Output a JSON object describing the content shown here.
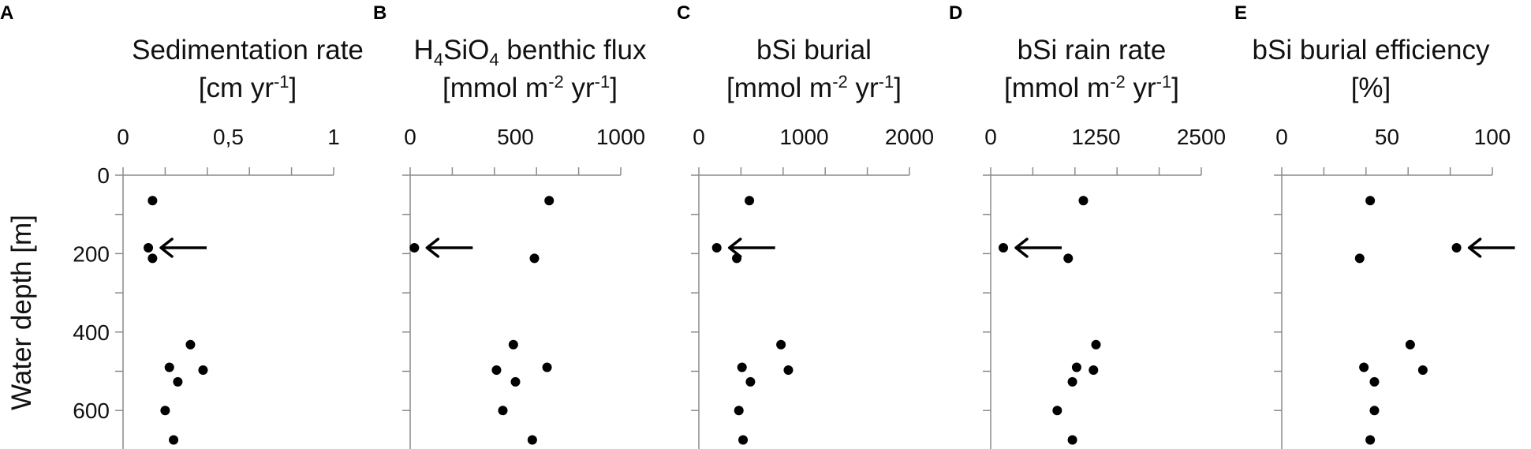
{
  "ylabel": "Water depth [m]",
  "y_ticks": [
    "0",
    "200",
    "400",
    "600"
  ],
  "chart_data": [
    {
      "type": "scatter",
      "letter": "A",
      "title_lines": [
        [
          {
            "t": "Sedimentation rate"
          }
        ],
        [
          {
            "t": "[cm yr"
          },
          {
            "t": "-1",
            "sup": true
          },
          {
            "t": "]"
          }
        ]
      ],
      "xlim": [
        0,
        1
      ],
      "xticks": [
        0,
        0.5,
        1
      ],
      "xtick_labels": [
        "0",
        "0,5",
        "1"
      ],
      "ylim": [
        0,
        700
      ],
      "y_inverted": true,
      "x": [
        0.14,
        0.12,
        0.14,
        0.32,
        0.22,
        0.38,
        0.26,
        0.2,
        0.24
      ],
      "y": [
        65,
        185,
        212,
        432,
        490,
        497,
        527,
        600,
        675
      ],
      "arrow_at": [
        0.12,
        185
      ]
    },
    {
      "type": "scatter",
      "letter": "B",
      "title_lines": [
        [
          {
            "t": "H"
          },
          {
            "t": "4",
            "sub": true
          },
          {
            "t": "SiO"
          },
          {
            "t": "4",
            "sub": true
          },
          {
            "t": " benthic flux"
          }
        ],
        [
          {
            "t": "[mmol m"
          },
          {
            "t": "-2",
            "sup": true
          },
          {
            "t": " yr"
          },
          {
            "t": "-1",
            "sup": true
          },
          {
            "t": "]"
          }
        ]
      ],
      "xlim": [
        0,
        1000
      ],
      "xticks": [
        0,
        500,
        1000
      ],
      "xtick_labels": [
        "0",
        "500",
        "1000"
      ],
      "ylim": [
        0,
        700
      ],
      "y_inverted": true,
      "x": [
        660,
        20,
        590,
        490,
        650,
        410,
        500,
        440,
        580
      ],
      "y": [
        65,
        185,
        212,
        432,
        490,
        497,
        527,
        600,
        675
      ],
      "arrow_at": [
        20,
        185
      ]
    },
    {
      "type": "scatter",
      "letter": "C",
      "title_lines": [
        [
          {
            "t": "bSi burial"
          }
        ],
        [
          {
            "t": "[mmol m"
          },
          {
            "t": "-2",
            "sup": true
          },
          {
            "t": " yr"
          },
          {
            "t": "-1",
            "sup": true
          },
          {
            "t": "]"
          }
        ]
      ],
      "xlim": [
        0,
        2000
      ],
      "xticks": [
        0,
        1000,
        2000
      ],
      "xtick_labels": [
        "0",
        "1000",
        "2000"
      ],
      "ylim": [
        0,
        700
      ],
      "y_inverted": true,
      "x": [
        480,
        170,
        360,
        780,
        410,
        850,
        490,
        380,
        420
      ],
      "y": [
        65,
        185,
        212,
        432,
        490,
        497,
        527,
        600,
        675
      ],
      "arrow_at": [
        170,
        185
      ]
    },
    {
      "type": "scatter",
      "letter": "D",
      "title_lines": [
        [
          {
            "t": "bSi rain rate"
          }
        ],
        [
          {
            "t": "[mmol m"
          },
          {
            "t": "-2",
            "sup": true
          },
          {
            "t": " yr"
          },
          {
            "t": "-1",
            "sup": true
          },
          {
            "t": "]"
          }
        ]
      ],
      "xlim": [
        0,
        2500
      ],
      "xticks": [
        0,
        1250,
        2500
      ],
      "xtick_labels": [
        "0",
        "1250",
        "2500"
      ],
      "ylim": [
        0,
        700
      ],
      "y_inverted": true,
      "x": [
        1100,
        150,
        920,
        1250,
        1020,
        1220,
        970,
        790,
        970
      ],
      "y": [
        65,
        185,
        212,
        432,
        490,
        497,
        527,
        600,
        675
      ],
      "arrow_at": [
        150,
        185
      ]
    },
    {
      "type": "scatter",
      "letter": "E",
      "title_lines": [
        [
          {
            "t": "bSi burial efficiency"
          }
        ],
        [
          {
            "t": "[%]"
          }
        ]
      ],
      "xlim": [
        0,
        100
      ],
      "xticks": [
        0,
        50,
        100
      ],
      "xtick_labels": [
        "0",
        "50",
        "100"
      ],
      "ylim": [
        0,
        700
      ],
      "y_inverted": true,
      "x": [
        42,
        83,
        37,
        61,
        39,
        67,
        44,
        44,
        42
      ],
      "y": [
        65,
        185,
        212,
        432,
        490,
        497,
        527,
        600,
        675
      ],
      "arrow_at": [
        83,
        185
      ]
    }
  ]
}
